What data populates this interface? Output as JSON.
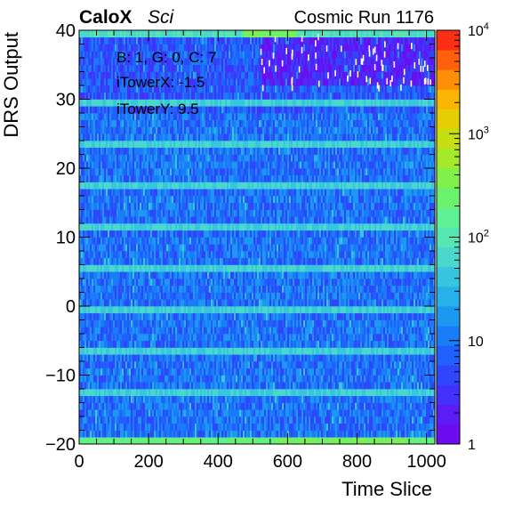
{
  "header": {
    "experiment": "CaloX",
    "experiment_sub": "Sci",
    "run_label": "Cosmic Run 1176"
  },
  "annotations": [
    "B: 1, G: 0, C: 7",
    "iTowerX: -1.5",
    "iTowerY: 9.5"
  ],
  "chart_data": {
    "type": "heatmap",
    "title": "",
    "xlabel": "Time Slice",
    "ylabel": "DRS Output",
    "xlim": [
      0,
      1024
    ],
    "ylim": [
      -20,
      40
    ],
    "x_ticks": [
      "0",
      "200",
      "400",
      "600",
      "800",
      "1000"
    ],
    "y_ticks": [
      "−20",
      "−10",
      "0",
      "10",
      "20",
      "30",
      "40"
    ],
    "z_scale": "log",
    "zlim": [
      1,
      10000
    ],
    "z_ticks": [
      {
        "value": 1,
        "label": "1"
      },
      {
        "value": 10,
        "label": "10"
      },
      {
        "value": 100,
        "label": "10",
        "exp": "2"
      },
      {
        "value": 1000,
        "label": "10",
        "exp": "3"
      },
      {
        "value": 10000,
        "label": "10",
        "exp": "4"
      }
    ],
    "palette": [
      "#6e0cf0",
      "#5b1cf6",
      "#4430fb",
      "#2f46fd",
      "#2060fc",
      "#1a7cf8",
      "#1c97f2",
      "#27b0ea",
      "#38c6de",
      "#4ad8cc",
      "#56e6b3",
      "#5ef093",
      "#6af26e",
      "#82f04a",
      "#a3ea2a",
      "#c6df12",
      "#e6ce05",
      "#fbb504",
      "#ff8f06",
      "#ff600c",
      "#fd2f13"
    ],
    "features": {
      "bright_rows_at_y": [
        -20,
        -13,
        -7,
        -1,
        5,
        11,
        17,
        23,
        29
      ],
      "high_band_at_y": 39,
      "high_band_peak_x": [
        470,
        620
      ],
      "sparse_top_region": {
        "x_from": 520,
        "y_from": 32
      }
    }
  }
}
